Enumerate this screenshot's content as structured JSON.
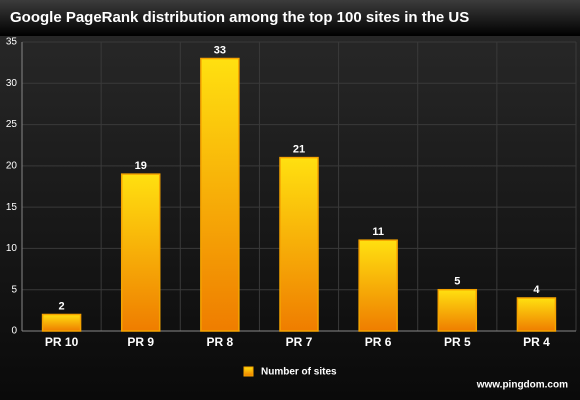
{
  "chart_data": {
    "type": "bar",
    "title": "Google PageRank distribution among the top 100 sites in the US",
    "categories": [
      "PR 10",
      "PR 9",
      "PR 8",
      "PR 7",
      "PR 6",
      "PR 5",
      "PR 4"
    ],
    "series": [
      {
        "name": "Number of sites",
        "color": "#f5a300",
        "values": [
          2,
          19,
          33,
          21,
          11,
          5,
          4
        ]
      }
    ],
    "ylim": [
      0,
      35
    ],
    "yticks": [
      0,
      5,
      10,
      15,
      20,
      25,
      30,
      35
    ],
    "grid": true,
    "legend": "bottom",
    "credit": "www.pingdom.com"
  }
}
